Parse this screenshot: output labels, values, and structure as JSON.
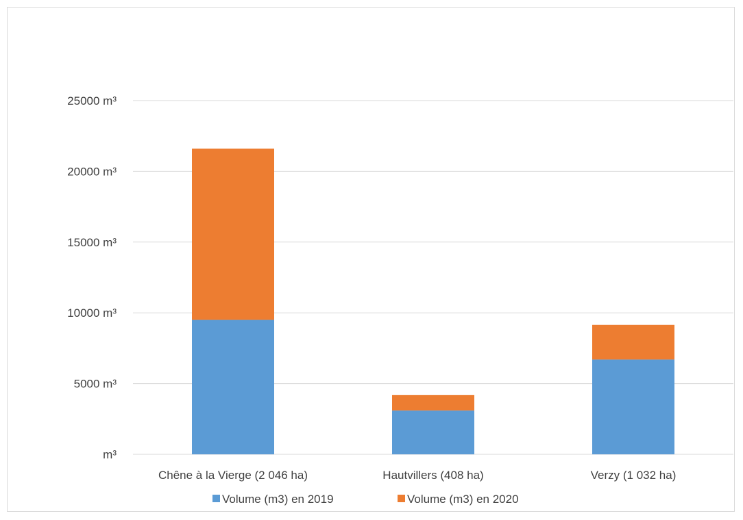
{
  "chart_data": {
    "type": "bar",
    "stacked": true,
    "categories": [
      "Chêne à la Vierge (2 046 ha)",
      "Hautvillers (408 ha)",
      "Verzy (1 032 ha)"
    ],
    "series": [
      {
        "name": "Volume (m3) en 2019",
        "color": "#5B9BD5",
        "values": [
          9500,
          3100,
          6700
        ]
      },
      {
        "name": "Volume (m3) en 2020",
        "color": "#ED7D31",
        "values": [
          12100,
          1100,
          2450
        ]
      }
    ],
    "yticks": [
      "m³",
      "5000 m³",
      "10000 m³",
      "15000 m³",
      "20000 m³",
      "25000 m³"
    ],
    "ylim": [
      0,
      25000
    ],
    "ytick_step": 5000,
    "grid": true,
    "legend_position": "bottom",
    "gridline_color": "#d9d9d9",
    "text_color": "#404040"
  }
}
